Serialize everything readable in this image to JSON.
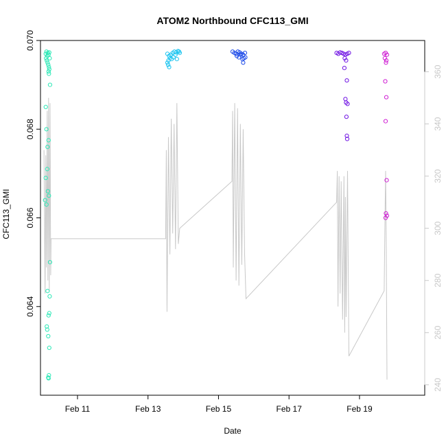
{
  "chart_data": {
    "type": "scatter",
    "title": "ATOM2 Northbound CFC113_GMI",
    "xlabel": "Date",
    "ylabel": "CFC113_GMI",
    "x_ticks": [
      {
        "label": "Feb 11",
        "day": 11
      },
      {
        "label": "Feb 13",
        "day": 13
      },
      {
        "label": "Feb 15",
        "day": 15
      },
      {
        "label": "Feb 17",
        "day": 17
      },
      {
        "label": "Feb 19",
        "day": 19
      }
    ],
    "xlim_days": [
      9.95,
      20.85
    ],
    "ylim": [
      0.062,
      0.07
    ],
    "y_ticks": [
      "0.064",
      "0.066",
      "0.068",
      "0.070"
    ],
    "y_tick_values": [
      0.064,
      0.066,
      0.068,
      0.07
    ],
    "right_axis": {
      "ylim": [
        236,
        372
      ],
      "ticks": [
        240,
        260,
        280,
        300,
        320,
        340,
        360
      ],
      "color": "#c8c8c8"
    },
    "grid": false,
    "series": [
      {
        "color": "#2be8b6",
        "points": [
          [
            10.1,
            0.0697
          ],
          [
            10.12,
            0.06975
          ],
          [
            10.14,
            0.06965
          ],
          [
            10.16,
            0.06972
          ],
          [
            10.18,
            0.06968
          ],
          [
            10.2,
            0.06973
          ],
          [
            10.11,
            0.0696
          ],
          [
            10.13,
            0.06955
          ],
          [
            10.15,
            0.0695
          ],
          [
            10.17,
            0.06945
          ],
          [
            10.19,
            0.0694
          ],
          [
            10.21,
            0.0696
          ],
          [
            10.18,
            0.0693
          ],
          [
            10.2,
            0.06935
          ],
          [
            10.22,
            0.069
          ],
          [
            10.19,
            0.06925
          ],
          [
            10.1,
            0.0685
          ],
          [
            10.12,
            0.068
          ],
          [
            10.15,
            0.0676
          ],
          [
            10.18,
            0.06775
          ],
          [
            10.14,
            0.0671
          ],
          [
            10.1,
            0.0669
          ],
          [
            10.16,
            0.0666
          ],
          [
            10.19,
            0.0665
          ],
          [
            10.08,
            0.0664
          ],
          [
            10.12,
            0.0663
          ],
          [
            10.22,
            0.065
          ],
          [
            10.15,
            0.06435
          ],
          [
            10.21,
            0.06423
          ],
          [
            10.2,
            0.06385
          ],
          [
            10.18,
            0.0638
          ],
          [
            10.13,
            0.06355
          ],
          [
            10.14,
            0.06348
          ],
          [
            10.17,
            0.06333
          ],
          [
            10.2,
            0.06307
          ],
          [
            10.19,
            0.06245
          ],
          [
            10.17,
            0.0624
          ],
          [
            10.18,
            0.06238
          ]
        ]
      },
      {
        "color": "#19c3ef",
        "points": [
          [
            13.55,
            0.0697
          ],
          [
            13.6,
            0.06965
          ],
          [
            13.65,
            0.06968
          ],
          [
            13.7,
            0.06972
          ],
          [
            13.75,
            0.06975
          ],
          [
            13.8,
            0.06973
          ],
          [
            13.85,
            0.06976
          ],
          [
            13.62,
            0.0696
          ],
          [
            13.58,
            0.06955
          ],
          [
            13.67,
            0.06958
          ],
          [
            13.72,
            0.06962
          ],
          [
            13.78,
            0.06968
          ],
          [
            13.55,
            0.0695
          ],
          [
            13.57,
            0.06945
          ],
          [
            13.6,
            0.0694
          ],
          [
            13.82,
            0.06958
          ],
          [
            13.88,
            0.06975
          ],
          [
            13.9,
            0.06972
          ]
        ]
      },
      {
        "color": "#1a48e8",
        "points": [
          [
            15.4,
            0.06975
          ],
          [
            15.45,
            0.06972
          ],
          [
            15.5,
            0.0697
          ],
          [
            15.55,
            0.06975
          ],
          [
            15.6,
            0.06973
          ],
          [
            15.65,
            0.0697
          ],
          [
            15.7,
            0.06968
          ],
          [
            15.75,
            0.06972
          ],
          [
            15.52,
            0.06965
          ],
          [
            15.58,
            0.06962
          ],
          [
            15.63,
            0.06968
          ],
          [
            15.68,
            0.06958
          ],
          [
            15.72,
            0.0696
          ],
          [
            15.76,
            0.06962
          ],
          [
            15.7,
            0.0695
          ]
        ]
      },
      {
        "color": "#6f12e3",
        "points": [
          [
            18.35,
            0.06972
          ],
          [
            18.4,
            0.0697
          ],
          [
            18.45,
            0.06973
          ],
          [
            18.5,
            0.06972
          ],
          [
            18.55,
            0.0697
          ],
          [
            18.6,
            0.06968
          ],
          [
            18.65,
            0.0697
          ],
          [
            18.7,
            0.06972
          ],
          [
            18.58,
            0.0696
          ],
          [
            18.62,
            0.06955
          ],
          [
            18.57,
            0.06938
          ],
          [
            18.64,
            0.0691
          ],
          [
            18.6,
            0.06868
          ],
          [
            18.62,
            0.0686
          ],
          [
            18.66,
            0.06857
          ],
          [
            18.63,
            0.06828
          ],
          [
            18.64,
            0.06785
          ],
          [
            18.65,
            0.06778
          ]
        ]
      },
      {
        "color": "#cf1ed3",
        "points": [
          [
            19.7,
            0.0697
          ],
          [
            19.74,
            0.06972
          ],
          [
            19.78,
            0.06968
          ],
          [
            19.72,
            0.0696
          ],
          [
            19.76,
            0.06955
          ],
          [
            19.75,
            0.0695
          ],
          [
            19.73,
            0.06908
          ],
          [
            19.76,
            0.06872
          ],
          [
            19.74,
            0.06818
          ],
          [
            19.77,
            0.06685
          ],
          [
            19.75,
            0.0661
          ],
          [
            19.78,
            0.06605
          ],
          [
            19.74,
            0.066
          ]
        ]
      }
    ],
    "right_series": {
      "color": "#c8c8c8",
      "points": [
        [
          10.05,
          330
        ],
        [
          10.08,
          275
        ],
        [
          10.1,
          328
        ],
        [
          10.12,
          285
        ],
        [
          10.14,
          345
        ],
        [
          10.16,
          280
        ],
        [
          10.18,
          350
        ],
        [
          10.2,
          276
        ],
        [
          10.22,
          348
        ],
        [
          10.24,
          282
        ],
        [
          10.25,
          296
        ],
        [
          13.5,
          296
        ],
        [
          13.52,
          330
        ],
        [
          13.54,
          268
        ],
        [
          13.58,
          335
        ],
        [
          13.62,
          290
        ],
        [
          13.66,
          342
        ],
        [
          13.7,
          298
        ],
        [
          13.74,
          340
        ],
        [
          13.78,
          292
        ],
        [
          13.82,
          348
        ],
        [
          13.86,
          294
        ],
        [
          13.9,
          300
        ],
        [
          15.38,
          318
        ],
        [
          15.4,
          345
        ],
        [
          15.42,
          285
        ],
        [
          15.46,
          348
        ],
        [
          15.5,
          280
        ],
        [
          15.54,
          346
        ],
        [
          15.58,
          278
        ],
        [
          15.62,
          340
        ],
        [
          15.66,
          286
        ],
        [
          15.7,
          338
        ],
        [
          15.74,
          290
        ],
        [
          15.78,
          273
        ],
        [
          18.35,
          310
        ],
        [
          18.37,
          322
        ],
        [
          18.39,
          270
        ],
        [
          18.42,
          320
        ],
        [
          18.45,
          275
        ],
        [
          18.48,
          318
        ],
        [
          18.52,
          265
        ],
        [
          18.56,
          320
        ],
        [
          18.58,
          260
        ],
        [
          18.6,
          312
        ],
        [
          18.62,
          266
        ],
        [
          18.66,
          322
        ],
        [
          18.7,
          251
        ],
        [
          19.7,
          276
        ],
        [
          19.72,
          300
        ],
        [
          19.74,
          322
        ],
        [
          19.76,
          290
        ],
        [
          19.78,
          242
        ]
      ]
    }
  }
}
